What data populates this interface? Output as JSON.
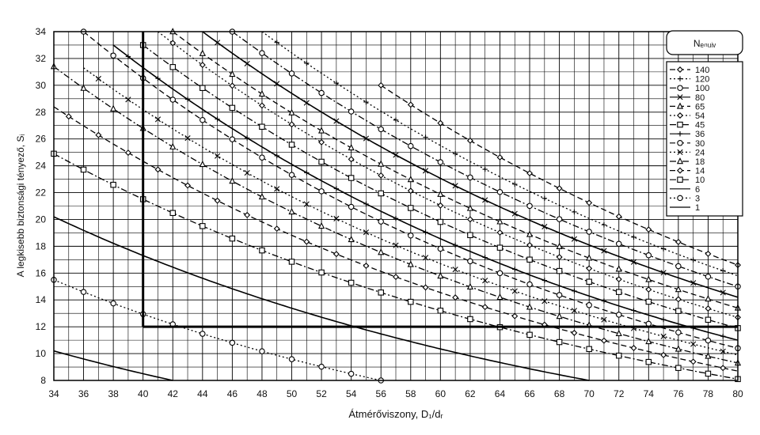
{
  "chart_data": {
    "type": "line",
    "title": "",
    "xlabel": "Átmérőviszony, D₁/dᵣ",
    "ylabel": "A legkisebb biztonsági tényező, Sᵢ",
    "xlim": [
      34,
      80
    ],
    "ylim": [
      8,
      34
    ],
    "xticks": [
      34,
      36,
      38,
      40,
      42,
      44,
      46,
      48,
      50,
      52,
      54,
      56,
      58,
      60,
      62,
      64,
      66,
      68,
      70,
      72,
      74,
      76,
      78,
      80
    ],
    "yticks": [
      8,
      10,
      12,
      14,
      16,
      18,
      20,
      22,
      24,
      26,
      28,
      30,
      32,
      34
    ],
    "grid": true,
    "legend_title": "Nₑₙᵤᵢᵥ",
    "legend_position": "top-right",
    "series": [
      {
        "name": "140",
        "marker": "diamond",
        "dash": "dashed",
        "points": [
          [
            56,
            30
          ],
          [
            80,
            16.6
          ]
        ]
      },
      {
        "name": "120",
        "marker": "plus",
        "dash": "dotted",
        "points": [
          [
            48,
            34
          ],
          [
            80,
            15.8
          ]
        ]
      },
      {
        "name": "100",
        "marker": "circle",
        "dash": "dashdot",
        "points": [
          [
            46,
            34
          ],
          [
            80,
            15.0
          ]
        ]
      },
      {
        "name": "80",
        "marker": "x",
        "dash": "solid",
        "points": [
          [
            44,
            34
          ],
          [
            80,
            14.2
          ]
        ]
      },
      {
        "name": "65",
        "marker": "triangle",
        "dash": "dashed",
        "points": [
          [
            42,
            34
          ],
          [
            80,
            13.4
          ]
        ]
      },
      {
        "name": "54",
        "marker": "diamond",
        "dash": "dotted",
        "points": [
          [
            41,
            34
          ],
          [
            80,
            12.7
          ]
        ]
      },
      {
        "name": "45",
        "marker": "square",
        "dash": "dashdot",
        "points": [
          [
            40,
            33
          ],
          [
            80,
            11.9
          ]
        ]
      },
      {
        "name": "36",
        "marker": "plus",
        "dash": "solid",
        "points": [
          [
            38,
            33
          ],
          [
            80,
            11.0
          ]
        ]
      },
      {
        "name": "30",
        "marker": "circle",
        "dash": "dashed",
        "points": [
          [
            36,
            34
          ],
          [
            80,
            10.4
          ]
        ]
      },
      {
        "name": "24",
        "marker": "x",
        "dash": "dotted",
        "points": [
          [
            36,
            31.3
          ],
          [
            80,
            9.9
          ]
        ]
      },
      {
        "name": "18",
        "marker": "triangle",
        "dash": "dashdot",
        "points": [
          [
            34,
            31.4
          ],
          [
            80,
            9.3
          ]
        ]
      },
      {
        "name": "14",
        "marker": "diamond",
        "dash": "dashed",
        "points": [
          [
            34,
            28.4
          ],
          [
            80,
            8.7
          ]
        ]
      },
      {
        "name": "10",
        "marker": "square",
        "dash": "dashdot",
        "points": [
          [
            34,
            24.9
          ],
          [
            80,
            8.1
          ]
        ]
      },
      {
        "name": "6",
        "marker": "none",
        "dash": "solid",
        "points": [
          [
            34,
            20.2
          ],
          [
            70,
            8
          ]
        ]
      },
      {
        "name": "3",
        "marker": "circle",
        "dash": "dotted",
        "points": [
          [
            34,
            15.5
          ],
          [
            56,
            8
          ]
        ]
      },
      {
        "name": "1",
        "marker": "none",
        "dash": "solid",
        "points": [
          [
            34,
            10.2
          ],
          [
            42,
            8
          ]
        ]
      }
    ],
    "reference_lines": [
      {
        "orientation": "vertical",
        "x": 40,
        "y_from": 12,
        "y_to": 34
      },
      {
        "orientation": "horizontal",
        "y": 12,
        "x_from": 40,
        "x_to": 80
      }
    ]
  }
}
